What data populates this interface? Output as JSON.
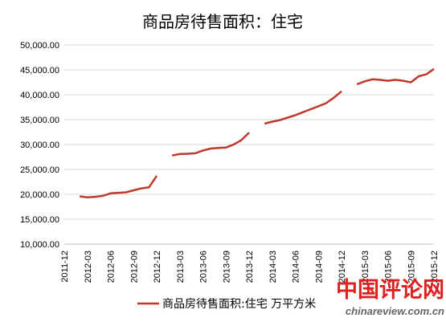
{
  "chart_data": {
    "type": "line",
    "title": "商品房待售面积：住宅",
    "xlabel": "",
    "ylabel": "",
    "ylim": [
      10000,
      50000
    ],
    "y_ticks": [
      "10,000.00",
      "15,000.00",
      "20,000.00",
      "25,000.00",
      "30,000.00",
      "35,000.00",
      "40,000.00",
      "45,000.00",
      "50,000.00"
    ],
    "x_ticks": [
      "2011-12",
      "2012-03",
      "2012-06",
      "2012-09",
      "2012-12",
      "2013-03",
      "2013-06",
      "2013-09",
      "2013-12",
      "2014-03",
      "2014-06",
      "2014-09",
      "2014-12",
      "2015-03",
      "2015-06",
      "2015-09",
      "2015-12"
    ],
    "x_range": [
      "2011-12",
      "2015-12"
    ],
    "grid": "horizontal",
    "legend_position": "bottom",
    "series": [
      {
        "name": "商品房待售面积:住宅 万平方米",
        "color": "#c0392b",
        "segments": [
          [
            {
              "x": "2012-02",
              "y": 19600
            },
            {
              "x": "2012-03",
              "y": 19400
            },
            {
              "x": "2012-04",
              "y": 19500
            },
            {
              "x": "2012-05",
              "y": 19700
            },
            {
              "x": "2012-06",
              "y": 20200
            },
            {
              "x": "2012-07",
              "y": 20300
            },
            {
              "x": "2012-08",
              "y": 20400
            },
            {
              "x": "2012-09",
              "y": 20800
            },
            {
              "x": "2012-10",
              "y": 21200
            },
            {
              "x": "2012-11",
              "y": 21400
            },
            {
              "x": "2012-12",
              "y": 23700
            }
          ],
          [
            {
              "x": "2013-02",
              "y": 27800
            },
            {
              "x": "2013-03",
              "y": 28100
            },
            {
              "x": "2013-04",
              "y": 28150
            },
            {
              "x": "2013-05",
              "y": 28250
            },
            {
              "x": "2013-06",
              "y": 28800
            },
            {
              "x": "2013-07",
              "y": 29200
            },
            {
              "x": "2013-08",
              "y": 29300
            },
            {
              "x": "2013-09",
              "y": 29400
            },
            {
              "x": "2013-10",
              "y": 30000
            },
            {
              "x": "2013-11",
              "y": 30900
            },
            {
              "x": "2013-12",
              "y": 32400
            }
          ],
          [
            {
              "x": "2014-02",
              "y": 34200
            },
            {
              "x": "2014-03",
              "y": 34600
            },
            {
              "x": "2014-04",
              "y": 34900
            },
            {
              "x": "2014-05",
              "y": 35400
            },
            {
              "x": "2014-06",
              "y": 35900
            },
            {
              "x": "2014-07",
              "y": 36500
            },
            {
              "x": "2014-08",
              "y": 37100
            },
            {
              "x": "2014-09",
              "y": 37700
            },
            {
              "x": "2014-10",
              "y": 38300
            },
            {
              "x": "2014-11",
              "y": 39400
            },
            {
              "x": "2014-12",
              "y": 40700
            }
          ],
          [
            {
              "x": "2015-02",
              "y": 42100
            },
            {
              "x": "2015-03",
              "y": 42700
            },
            {
              "x": "2015-04",
              "y": 43100
            },
            {
              "x": "2015-05",
              "y": 43000
            },
            {
              "x": "2015-06",
              "y": 42800
            },
            {
              "x": "2015-07",
              "y": 43000
            },
            {
              "x": "2015-08",
              "y": 42800
            },
            {
              "x": "2015-09",
              "y": 42500
            },
            {
              "x": "2015-10",
              "y": 43700
            },
            {
              "x": "2015-11",
              "y": 44100
            },
            {
              "x": "2015-12",
              "y": 45200
            }
          ]
        ]
      }
    ]
  },
  "watermark": {
    "text": "中国评论网",
    "url": "chinareview.com.cn"
  }
}
